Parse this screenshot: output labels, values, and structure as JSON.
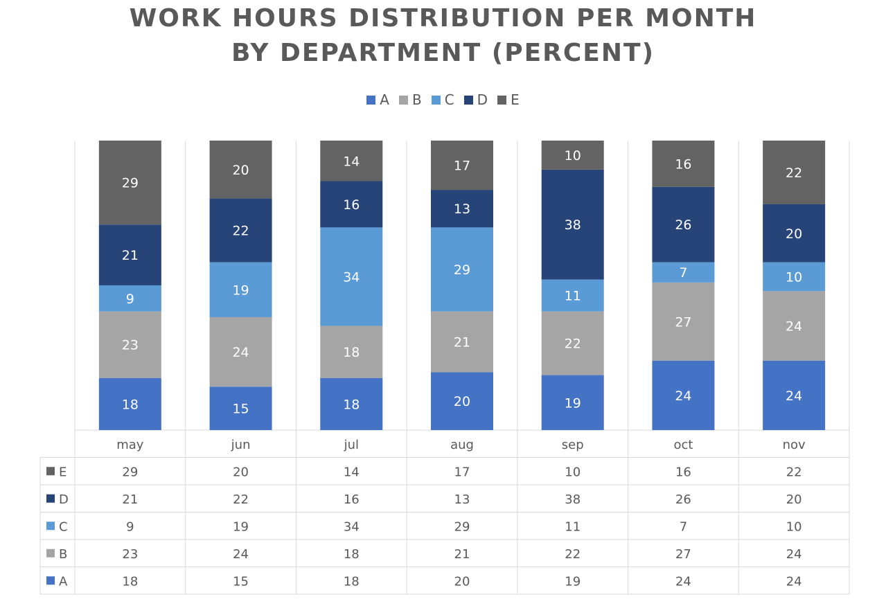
{
  "chart_data": {
    "type": "bar",
    "stacked": true,
    "title_line1": "WORK HOURS DISTRIBUTION PER MONTH",
    "title_line2": "BY DEPARTMENT (PERCENT)",
    "categories": [
      "may",
      "jun",
      "jul",
      "aug",
      "sep",
      "oct",
      "nov"
    ],
    "series": [
      {
        "name": "A",
        "color": "#4472C4",
        "values": [
          18,
          15,
          18,
          20,
          19,
          24,
          24
        ]
      },
      {
        "name": "B",
        "color": "#A5A5A5",
        "values": [
          23,
          24,
          18,
          21,
          22,
          27,
          24
        ]
      },
      {
        "name": "C",
        "color": "#5B9BD5",
        "values": [
          9,
          19,
          34,
          29,
          11,
          7,
          10
        ]
      },
      {
        "name": "D",
        "color": "#264478",
        "values": [
          21,
          22,
          16,
          13,
          38,
          26,
          20
        ]
      },
      {
        "name": "E",
        "color": "#636363",
        "values": [
          29,
          20,
          14,
          17,
          10,
          16,
          22
        ]
      }
    ],
    "legend_position": "top",
    "data_table": true,
    "data_table_order": [
      "E",
      "D",
      "C",
      "B",
      "A"
    ],
    "grid": false
  }
}
